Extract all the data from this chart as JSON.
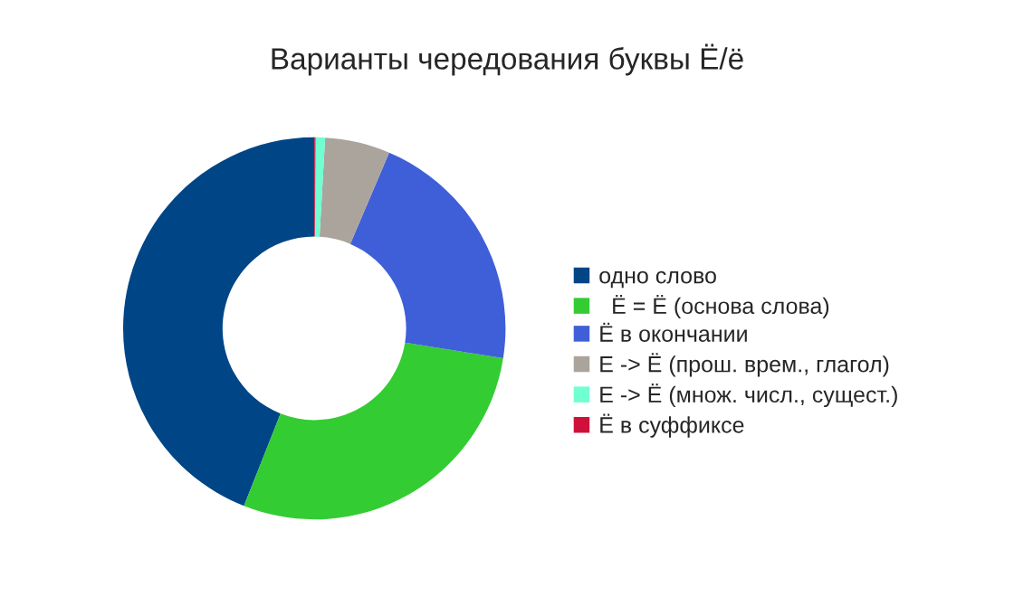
{
  "chart_data": {
    "type": "donut",
    "title": "Варианты чередования буквы Ё/ё",
    "categories": [
      "одно слово",
      "  Ё = Ё (основа слова)",
      "Ё в окончании",
      "Е -> Ё (прош. врем., глагол)",
      "Е -> Ё (множ. числ., сущест.)",
      "Ё в суффиксе"
    ],
    "values": [
      44.0,
      28.5,
      21.1,
      5.5,
      0.8,
      0.1
    ],
    "colors": [
      "#004586",
      "#33cc33",
      "#3f5fd8",
      "#aaa49c",
      "#6fffd0",
      "#d0103a"
    ],
    "legend": "right"
  }
}
